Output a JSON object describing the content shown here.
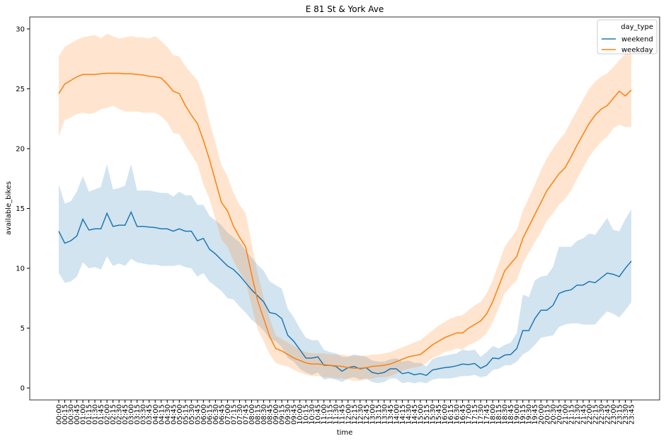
{
  "chart_data": {
    "type": "line",
    "title": "E 81 St & York Ave",
    "x_label": "time",
    "y_label": "available_bikes",
    "legend_title": "day_type",
    "legend_position": "upper right",
    "categories": [
      "00:00",
      "00:15",
      "00:30",
      "00:45",
      "01:00",
      "01:15",
      "01:30",
      "01:45",
      "02:00",
      "02:15",
      "02:30",
      "02:45",
      "03:00",
      "03:15",
      "03:30",
      "03:45",
      "04:00",
      "04:15",
      "04:30",
      "04:45",
      "05:00",
      "05:15",
      "05:30",
      "05:45",
      "06:00",
      "06:15",
      "06:30",
      "06:45",
      "07:00",
      "07:15",
      "07:30",
      "07:45",
      "08:00",
      "08:15",
      "08:30",
      "08:45",
      "09:00",
      "09:15",
      "09:30",
      "09:45",
      "10:00",
      "10:15",
      "10:30",
      "10:45",
      "11:00",
      "11:15",
      "11:30",
      "11:45",
      "12:00",
      "12:15",
      "12:30",
      "12:45",
      "13:00",
      "13:15",
      "13:30",
      "13:45",
      "14:00",
      "14:15",
      "14:30",
      "14:45",
      "15:00",
      "15:15",
      "15:30",
      "15:45",
      "16:00",
      "16:15",
      "16:30",
      "16:45",
      "17:00",
      "17:15",
      "17:30",
      "17:45",
      "18:00",
      "18:15",
      "18:30",
      "18:45",
      "19:00",
      "19:15",
      "19:30",
      "19:45",
      "20:00",
      "20:15",
      "20:30",
      "20:45",
      "21:00",
      "21:15",
      "21:30",
      "21:45",
      "22:00",
      "22:15",
      "22:30",
      "22:45",
      "23:00",
      "23:15",
      "23:30",
      "23:45"
    ],
    "ylim": [
      -1,
      31
    ],
    "yticks": [
      0,
      5,
      10,
      15,
      20,
      25,
      30
    ],
    "band_opacity": 0.2,
    "series": [
      {
        "name": "weekend",
        "color": "#1f77b4",
        "values": [
          13.1,
          12.1,
          12.3,
          12.7,
          14.1,
          13.2,
          13.3,
          13.3,
          14.6,
          13.5,
          13.6,
          13.6,
          14.7,
          13.5,
          13.5,
          13.45,
          13.4,
          13.3,
          13.3,
          13.1,
          13.3,
          13.1,
          13.1,
          12.3,
          12.5,
          11.6,
          11.2,
          10.7,
          10.2,
          9.9,
          9.4,
          8.8,
          8.2,
          7.7,
          7.2,
          6.3,
          6.2,
          5.8,
          4.4,
          3.9,
          3.2,
          2.5,
          2.5,
          2.6,
          1.9,
          1.9,
          1.8,
          1.4,
          1.7,
          1.8,
          1.6,
          1.7,
          1.3,
          1.2,
          1.3,
          1.6,
          1.6,
          1.2,
          1.3,
          1.1,
          1.2,
          1.05,
          1.5,
          1.6,
          1.7,
          1.75,
          1.85,
          2.0,
          1.95,
          2.05,
          1.65,
          1.9,
          2.5,
          2.45,
          2.75,
          2.8,
          3.3,
          4.8,
          4.8,
          5.8,
          6.5,
          6.5,
          6.9,
          7.9,
          8.1,
          8.2,
          8.6,
          8.6,
          8.9,
          8.8,
          9.2,
          9.6,
          9.5,
          9.3,
          10.0,
          10.6
        ],
        "upper": [
          17.0,
          15.4,
          15.6,
          16.4,
          17.7,
          16.4,
          16.6,
          16.8,
          18.7,
          16.6,
          16.7,
          16.9,
          18.7,
          16.5,
          16.5,
          16.5,
          16.4,
          16.3,
          16.3,
          16.0,
          16.4,
          16.1,
          16.1,
          15.3,
          15.3,
          14.4,
          14.0,
          13.6,
          13.0,
          12.6,
          12.2,
          11.5,
          10.9,
          10.3,
          9.8,
          8.9,
          8.6,
          8.3,
          6.6,
          5.9,
          5.0,
          4.2,
          4.0,
          4.0,
          3.2,
          3.0,
          2.9,
          2.6,
          2.6,
          2.8,
          2.7,
          2.6,
          2.3,
          2.2,
          2.2,
          2.4,
          2.5,
          2.2,
          2.3,
          2.1,
          2.1,
          1.8,
          2.4,
          2.6,
          2.7,
          2.8,
          2.9,
          3.2,
          3.1,
          3.2,
          2.6,
          3.0,
          3.5,
          3.3,
          3.6,
          3.8,
          4.6,
          7.8,
          7.6,
          9.0,
          9.3,
          9.4,
          10.1,
          11.8,
          11.8,
          11.8,
          12.3,
          12.5,
          12.9,
          12.8,
          13.5,
          14.2,
          13.2,
          13.1,
          14.1,
          14.9
        ],
        "lower": [
          9.6,
          8.8,
          8.9,
          9.3,
          10.5,
          10.0,
          10.1,
          9.9,
          11.0,
          10.2,
          10.4,
          10.2,
          10.8,
          10.5,
          10.4,
          10.3,
          10.3,
          10.2,
          10.2,
          10.2,
          10.3,
          10.1,
          10.0,
          9.3,
          9.6,
          8.9,
          8.5,
          8.1,
          7.5,
          7.4,
          6.8,
          6.3,
          5.7,
          5.3,
          4.8,
          4.1,
          3.9,
          3.4,
          2.5,
          2.2,
          1.6,
          1.3,
          1.1,
          1.3,
          0.7,
          0.8,
          0.7,
          0.5,
          0.8,
          0.9,
          0.7,
          0.8,
          0.5,
          0.4,
          0.5,
          0.8,
          0.8,
          0.4,
          0.5,
          0.4,
          0.5,
          0.4,
          0.7,
          0.8,
          0.8,
          0.8,
          0.9,
          1.0,
          1.0,
          1.1,
          0.9,
          1.0,
          1.5,
          1.6,
          1.9,
          1.9,
          2.2,
          2.8,
          3.1,
          3.6,
          4.2,
          4.3,
          4.4,
          5.1,
          5.3,
          5.4,
          5.4,
          5.3,
          5.3,
          5.3,
          5.9,
          6.4,
          6.2,
          5.9,
          6.5,
          7.2
        ]
      },
      {
        "name": "weekday",
        "color": "#ff7f0e",
        "values": [
          24.6,
          25.4,
          25.7,
          26.0,
          26.2,
          26.2,
          26.2,
          26.25,
          26.3,
          26.3,
          26.3,
          26.25,
          26.25,
          26.2,
          26.15,
          26.05,
          26.0,
          25.9,
          25.4,
          24.8,
          24.6,
          23.6,
          22.8,
          22.1,
          20.7,
          19.1,
          17.3,
          15.5,
          14.8,
          13.5,
          12.6,
          11.8,
          9.5,
          7.3,
          5.8,
          4.3,
          3.3,
          3.1,
          2.8,
          2.5,
          2.3,
          2.1,
          2.0,
          2.0,
          1.95,
          1.9,
          1.85,
          1.8,
          1.7,
          1.65,
          1.65,
          1.7,
          1.8,
          1.85,
          1.9,
          2.0,
          2.2,
          2.4,
          2.6,
          2.7,
          2.8,
          3.2,
          3.6,
          3.9,
          4.2,
          4.4,
          4.6,
          4.6,
          5.0,
          5.3,
          5.6,
          6.2,
          7.2,
          8.5,
          9.8,
          10.4,
          11.0,
          12.5,
          13.5,
          14.5,
          15.5,
          16.5,
          17.2,
          17.9,
          18.4,
          19.3,
          20.3,
          21.2,
          22.1,
          22.8,
          23.3,
          23.6,
          24.2,
          24.8,
          24.4,
          24.9
        ],
        "upper": [
          27.7,
          28.5,
          28.8,
          29.1,
          29.3,
          29.4,
          29.5,
          29.2,
          29.6,
          29.4,
          29.2,
          29.3,
          29.4,
          29.3,
          29.3,
          29.2,
          29.4,
          29.0,
          28.5,
          27.8,
          27.7,
          26.9,
          26.3,
          25.7,
          24.4,
          22.3,
          20.5,
          18.6,
          17.7,
          16.3,
          15.3,
          14.6,
          12.1,
          9.6,
          7.6,
          5.8,
          4.4,
          4.1,
          3.8,
          3.5,
          3.2,
          3.0,
          2.9,
          2.9,
          2.9,
          2.8,
          2.8,
          2.8,
          2.7,
          2.7,
          2.7,
          2.7,
          2.8,
          2.8,
          2.9,
          3.0,
          3.2,
          3.4,
          3.6,
          3.8,
          4.0,
          4.4,
          4.8,
          5.2,
          5.5,
          5.8,
          6.0,
          6.1,
          6.5,
          6.9,
          7.2,
          7.9,
          9.0,
          10.4,
          11.8,
          12.5,
          13.2,
          14.8,
          15.9,
          17.0,
          18.2,
          19.2,
          20.0,
          20.7,
          21.3,
          22.3,
          23.2,
          24.1,
          25.0,
          25.6,
          26.0,
          26.3,
          26.8,
          27.4,
          27.9,
          28.0
        ],
        "lower": [
          21.0,
          22.4,
          22.6,
          22.9,
          23.0,
          22.9,
          23.0,
          23.3,
          23.4,
          23.6,
          23.3,
          23.1,
          23.1,
          23.1,
          23.0,
          23.0,
          23.0,
          22.7,
          22.2,
          21.3,
          21.2,
          20.3,
          19.5,
          18.7,
          17.0,
          15.8,
          14.1,
          12.4,
          11.8,
          10.6,
          9.7,
          8.9,
          6.9,
          4.9,
          3.9,
          2.8,
          2.1,
          1.9,
          1.8,
          1.5,
          1.3,
          1.1,
          1.0,
          1.0,
          0.9,
          0.9,
          0.8,
          0.8,
          0.7,
          0.6,
          0.6,
          0.7,
          0.8,
          0.9,
          0.9,
          1.0,
          1.2,
          1.4,
          1.6,
          1.7,
          1.8,
          2.1,
          2.5,
          2.7,
          3.0,
          3.1,
          3.3,
          3.2,
          3.6,
          3.8,
          4.1,
          4.6,
          5.5,
          6.7,
          7.9,
          8.5,
          9.0,
          10.4,
          11.3,
          12.2,
          13.0,
          14.0,
          14.6,
          15.3,
          15.8,
          16.5,
          17.5,
          18.4,
          19.3,
          20.0,
          20.6,
          21.0,
          21.7,
          22.0,
          21.8,
          21.8
        ]
      }
    ]
  }
}
